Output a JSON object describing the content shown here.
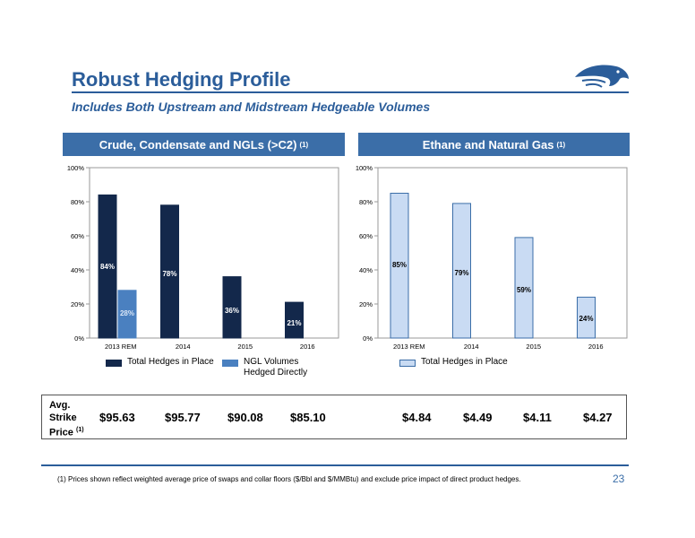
{
  "title": "Robust Hedging Profile",
  "subtitle": "Includes Both Upstream and Midstream Hedgeable Volumes",
  "logo_icon": "eagle-head-icon",
  "panels": {
    "left": {
      "header": "Crude, Condensate and NGLs (>C2)",
      "note": "(1)"
    },
    "right": {
      "header": "Ethane and Natural Gas",
      "note": "(1)"
    }
  },
  "legend": {
    "total": "Total Hedges in Place",
    "ngl_line1": "NGL Volumes",
    "ngl_line2": "Hedged Directly",
    "total_right": "Total Hedges in Place"
  },
  "colors": {
    "dark_navy": "#13284b",
    "mid_blue": "#4a80c0",
    "light_blue": "#c9dbf3",
    "accent": "#2b5d9a"
  },
  "chart_data": [
    {
      "type": "bar",
      "categories": [
        "2013 REM",
        "2014",
        "2015",
        "2016"
      ],
      "series": [
        {
          "name": "Total Hedges in Place",
          "values": [
            84,
            78,
            36,
            21
          ],
          "labels": [
            "84%",
            "78%",
            "36%",
            "21%"
          ]
        },
        {
          "name": "NGL Volumes Hedged Directly",
          "values": [
            28,
            null,
            null,
            null
          ],
          "labels": [
            "28%",
            "",
            "",
            ""
          ]
        }
      ],
      "yticks": [
        "0%",
        "20%",
        "40%",
        "60%",
        "80%",
        "100%"
      ],
      "ylim": [
        0,
        100
      ],
      "grid": false,
      "legend_position": "bottom"
    },
    {
      "type": "bar",
      "categories": [
        "2013 REM",
        "2014",
        "2015",
        "2016"
      ],
      "series": [
        {
          "name": "Total Hedges in Place",
          "values": [
            85,
            79,
            59,
            24
          ],
          "labels": [
            "85%",
            "79%",
            "59%",
            "24%"
          ]
        }
      ],
      "yticks": [
        "0%",
        "20%",
        "40%",
        "60%",
        "80%",
        "100%"
      ],
      "ylim": [
        0,
        100
      ],
      "grid": false,
      "legend_position": "bottom"
    }
  ],
  "prices": {
    "label_line1": "Avg.",
    "label_line2": "Strike",
    "label_line3": "Price",
    "label_note": "(1)",
    "values": [
      "$95.63",
      "$95.77",
      "$90.08",
      "$85.10",
      "$4.84",
      "$4.49",
      "$4.11",
      "$4.27"
    ]
  },
  "footnote": "(1)   Prices shown reflect weighted average price of swaps and collar floors ($/Bbl and $/MMBtu) and exclude price impact of direct product hedges.",
  "page_number": "23"
}
